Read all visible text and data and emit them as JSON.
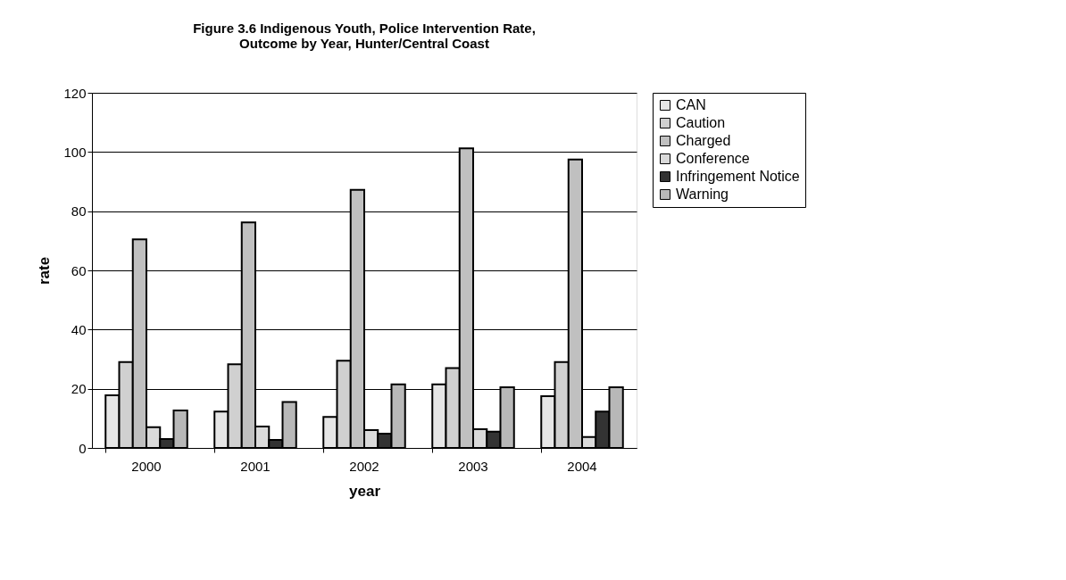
{
  "chart_data": {
    "type": "bar",
    "title": "Figure 3.6 Indigenous Youth, Police  Intervention Rate,\nOutcome by Year, Hunter/Central Coast",
    "xlabel": "year",
    "ylabel": "rate",
    "categories": [
      "2000",
      "2001",
      "2002",
      "2003",
      "2004"
    ],
    "series": [
      {
        "name": "CAN",
        "color": "#e6e6e6",
        "values": [
          17.8,
          12.3,
          10.5,
          21.5,
          17.5
        ]
      },
      {
        "name": "Caution",
        "color": "#d0d0d0",
        "values": [
          29,
          28.3,
          29.5,
          27,
          29
        ]
      },
      {
        "name": "Charged",
        "color": "#c0c0c0",
        "values": [
          70.5,
          76.2,
          87.2,
          101.2,
          97.5
        ]
      },
      {
        "name": "Conference",
        "color": "#dadada",
        "values": [
          7,
          7.2,
          6,
          6.3,
          3.7
        ]
      },
      {
        "name": "Infringement Notice",
        "color": "#333333",
        "values": [
          3,
          2.7,
          4.8,
          5.5,
          12.3
        ]
      },
      {
        "name": "Warning",
        "color": "#b8b8b8",
        "values": [
          12.7,
          15.5,
          21.5,
          20.5,
          20.5
        ]
      }
    ],
    "ylim": [
      0,
      120
    ],
    "yticks": [
      0,
      20,
      40,
      60,
      80,
      100,
      120
    ],
    "grid": "y",
    "legend": "right"
  }
}
